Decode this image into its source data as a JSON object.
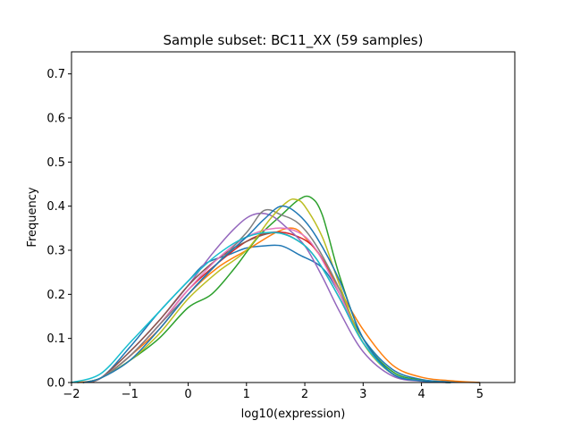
{
  "chart_data": {
    "type": "line",
    "title": "Sample subset: BC11_XX (59 samples)",
    "xlabel": "log10(expression)",
    "ylabel": "Frequency",
    "xlim": [
      -2,
      5.6
    ],
    "ylim": [
      0,
      0.75
    ],
    "xticks": [
      -2,
      -1,
      0,
      1,
      2,
      3,
      4,
      5
    ],
    "yticks": [
      0.0,
      0.1,
      0.2,
      0.3,
      0.4,
      0.5,
      0.6,
      0.7
    ],
    "xtick_labels": [
      "−2",
      "−1",
      "0",
      "1",
      "2",
      "3",
      "4",
      "5"
    ],
    "ytick_labels": [
      "0.0",
      "0.1",
      "0.2",
      "0.3",
      "0.4",
      "0.5",
      "0.6",
      "0.7"
    ],
    "grid": false,
    "legend": "none",
    "series": [
      {
        "color": "#1f77b4",
        "x": [
          -1.9,
          -1.5,
          -1.0,
          -0.5,
          0.0,
          0.3,
          0.7,
          1.0,
          1.3,
          1.6,
          1.9,
          2.3,
          2.6,
          3.0,
          3.5,
          4.0,
          4.5,
          5.0
        ],
        "y": [
          0.0,
          0.01,
          0.08,
          0.16,
          0.23,
          0.27,
          0.29,
          0.305,
          0.31,
          0.31,
          0.29,
          0.26,
          0.2,
          0.1,
          0.03,
          0.007,
          0.002,
          0.0
        ]
      },
      {
        "color": "#ff7f0e",
        "x": [
          -1.9,
          -1.5,
          -1.0,
          -0.5,
          0.0,
          0.5,
          1.0,
          1.5,
          1.8,
          2.0,
          2.3,
          2.6,
          3.0,
          3.5,
          4.0,
          4.5,
          5.0
        ],
        "y": [
          0.0,
          0.01,
          0.06,
          0.12,
          0.2,
          0.26,
          0.3,
          0.34,
          0.35,
          0.33,
          0.28,
          0.21,
          0.12,
          0.04,
          0.012,
          0.004,
          0.0
        ]
      },
      {
        "color": "#2ca02c",
        "x": [
          -1.8,
          -1.5,
          -1.0,
          -0.5,
          0.0,
          0.4,
          0.8,
          1.2,
          1.6,
          1.9,
          2.1,
          2.3,
          2.6,
          3.0,
          3.5,
          4.0,
          4.5
        ],
        "y": [
          0.0,
          0.01,
          0.05,
          0.1,
          0.17,
          0.2,
          0.26,
          0.33,
          0.38,
          0.415,
          0.42,
          0.38,
          0.24,
          0.1,
          0.025,
          0.005,
          0.0
        ]
      },
      {
        "color": "#d62728",
        "x": [
          -1.8,
          -1.5,
          -1.0,
          -0.5,
          0.0,
          0.5,
          1.0,
          1.4,
          1.8,
          2.2,
          2.6,
          3.0,
          3.5,
          4.0,
          4.5
        ],
        "y": [
          0.0,
          0.01,
          0.06,
          0.13,
          0.21,
          0.27,
          0.32,
          0.34,
          0.335,
          0.3,
          0.2,
          0.09,
          0.02,
          0.004,
          0.0
        ]
      },
      {
        "color": "#9467bd",
        "x": [
          -1.8,
          -1.5,
          -1.0,
          -0.5,
          0.0,
          0.4,
          0.8,
          1.1,
          1.4,
          1.7,
          2.0,
          2.3,
          2.6,
          3.0,
          3.5,
          4.0,
          4.5
        ],
        "y": [
          0.0,
          0.01,
          0.07,
          0.14,
          0.22,
          0.29,
          0.35,
          0.38,
          0.38,
          0.35,
          0.31,
          0.24,
          0.16,
          0.07,
          0.015,
          0.003,
          0.0
        ]
      },
      {
        "color": "#8c564b",
        "x": [
          -1.8,
          -1.5,
          -1.0,
          -0.5,
          0.0,
          0.5,
          1.0,
          1.5,
          1.9,
          2.2,
          2.6,
          3.0,
          3.5,
          4.0,
          4.5
        ],
        "y": [
          0.0,
          0.01,
          0.07,
          0.14,
          0.22,
          0.28,
          0.32,
          0.34,
          0.32,
          0.28,
          0.19,
          0.09,
          0.02,
          0.004,
          0.0
        ]
      },
      {
        "color": "#e377c2",
        "x": [
          -1.8,
          -1.5,
          -1.0,
          -0.5,
          0.0,
          0.5,
          1.0,
          1.5,
          1.9,
          2.2,
          2.6,
          3.0,
          3.5,
          4.0,
          4.5
        ],
        "y": [
          0.0,
          0.01,
          0.06,
          0.13,
          0.21,
          0.28,
          0.33,
          0.35,
          0.34,
          0.3,
          0.2,
          0.09,
          0.02,
          0.004,
          0.0
        ]
      },
      {
        "color": "#7f7f7f",
        "x": [
          -1.8,
          -1.5,
          -1.0,
          -0.5,
          0.0,
          0.5,
          1.0,
          1.3,
          1.6,
          1.9,
          2.2,
          2.6,
          3.0,
          3.5,
          4.0,
          4.5
        ],
        "y": [
          0.0,
          0.01,
          0.06,
          0.13,
          0.2,
          0.27,
          0.34,
          0.39,
          0.38,
          0.36,
          0.31,
          0.21,
          0.09,
          0.02,
          0.004,
          0.0
        ]
      },
      {
        "color": "#bcbd22",
        "x": [
          -1.8,
          -1.5,
          -1.0,
          -0.5,
          0.0,
          0.5,
          1.0,
          1.4,
          1.7,
          1.85,
          2.0,
          2.3,
          2.6,
          3.0,
          3.5,
          4.0,
          4.5
        ],
        "y": [
          0.0,
          0.01,
          0.05,
          0.11,
          0.19,
          0.25,
          0.3,
          0.37,
          0.41,
          0.415,
          0.4,
          0.33,
          0.22,
          0.09,
          0.02,
          0.004,
          0.0
        ]
      },
      {
        "color": "#17becf",
        "x": [
          -2.0,
          -1.5,
          -1.0,
          -0.5,
          0.0,
          0.5,
          1.0,
          1.5,
          1.9,
          2.2,
          2.6,
          3.0,
          3.5,
          4.0,
          4.5
        ],
        "y": [
          0.0,
          0.02,
          0.09,
          0.16,
          0.23,
          0.29,
          0.33,
          0.34,
          0.32,
          0.28,
          0.19,
          0.09,
          0.02,
          0.004,
          0.0
        ]
      },
      {
        "color": "#1f77b4",
        "x": [
          -1.8,
          -1.5,
          -1.0,
          -0.5,
          0.0,
          0.5,
          1.0,
          1.3,
          1.6,
          1.9,
          2.2,
          2.6,
          3.0,
          3.5,
          4.0,
          4.5
        ],
        "y": [
          0.0,
          0.01,
          0.05,
          0.12,
          0.2,
          0.27,
          0.33,
          0.37,
          0.4,
          0.38,
          0.33,
          0.23,
          0.1,
          0.02,
          0.004,
          0.0
        ]
      }
    ]
  }
}
